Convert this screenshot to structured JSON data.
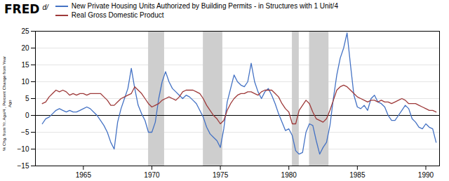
{
  "chart_data": {
    "type": "line",
    "title": "FRED",
    "annotations": [
      "d/"
    ],
    "ylabel": "% Chg. from Yr. Ago/4 , Percent Change from Year\nAgo",
    "xlim": [
      1961.5,
      1991.0
    ],
    "xticks": [
      1965,
      1970,
      1975,
      1980,
      1985,
      1990
    ],
    "ylim": [
      -15,
      25
    ],
    "yticks": [
      -15,
      -10,
      -5,
      0,
      5,
      10,
      15,
      20,
      25
    ],
    "grid": true,
    "recession_bands": {
      "color": "#cecece",
      "ranges": [
        [
          1969.75,
          1970.92
        ],
        [
          1973.75,
          1975.17
        ],
        [
          1980.25,
          1980.75
        ],
        [
          1981.5,
          1982.92
        ]
      ]
    },
    "x": [
      1962.0,
      1962.25,
      1962.5,
      1962.75,
      1963.0,
      1963.25,
      1963.5,
      1963.75,
      1964.0,
      1964.25,
      1964.5,
      1964.75,
      1965.0,
      1965.25,
      1965.5,
      1965.75,
      1966.0,
      1966.25,
      1966.5,
      1966.75,
      1967.0,
      1967.25,
      1967.5,
      1967.75,
      1968.0,
      1968.25,
      1968.5,
      1968.75,
      1969.0,
      1969.25,
      1969.5,
      1969.75,
      1970.0,
      1970.25,
      1970.5,
      1970.75,
      1971.0,
      1971.25,
      1971.5,
      1971.75,
      1972.0,
      1972.25,
      1972.5,
      1972.75,
      1973.0,
      1973.25,
      1973.5,
      1973.75,
      1974.0,
      1974.25,
      1974.5,
      1974.75,
      1975.0,
      1975.25,
      1975.5,
      1975.75,
      1976.0,
      1976.25,
      1976.5,
      1976.75,
      1977.0,
      1977.25,
      1977.5,
      1977.75,
      1978.0,
      1978.25,
      1978.5,
      1978.75,
      1979.0,
      1979.25,
      1979.5,
      1979.75,
      1980.0,
      1980.25,
      1980.5,
      1980.75,
      1981.0,
      1981.25,
      1981.5,
      1981.75,
      1982.0,
      1982.25,
      1982.5,
      1982.75,
      1983.0,
      1983.25,
      1983.5,
      1983.75,
      1984.0,
      1984.25,
      1984.5,
      1984.75,
      1985.0,
      1985.25,
      1985.5,
      1985.75,
      1986.0,
      1986.25,
      1986.5,
      1986.75,
      1987.0,
      1987.25,
      1987.5,
      1987.75,
      1988.0,
      1988.25,
      1988.5,
      1988.75,
      1989.0,
      1989.25,
      1989.5,
      1989.75,
      1990.0,
      1990.25,
      1990.5,
      1990.75
    ],
    "series": [
      {
        "name": "New Private Housing Units Authorized by Building Permits - in Structures with 1 Unit/4",
        "color": "#4472c4",
        "values": [
          -2.5,
          -1.0,
          -0.5,
          0.5,
          1.5,
          2.0,
          1.5,
          1.0,
          1.5,
          1.0,
          1.0,
          1.5,
          2.0,
          2.5,
          2.0,
          1.0,
          0.0,
          -1.5,
          -3.0,
          -5.0,
          -8.0,
          -10.0,
          -2.0,
          2.0,
          5.0,
          8.0,
          14.0,
          8.0,
          3.0,
          0.5,
          -1.5,
          -5.0,
          -5.0,
          -2.0,
          5.0,
          10.0,
          13.0,
          10.0,
          8.0,
          7.0,
          6.0,
          5.0,
          6.0,
          5.5,
          4.5,
          3.5,
          1.5,
          -0.5,
          -3.5,
          -5.5,
          -6.5,
          -7.5,
          -9.5,
          -4.0,
          4.0,
          8.0,
          12.0,
          10.0,
          9.0,
          8.5,
          10.0,
          15.5,
          10.0,
          7.0,
          5.0,
          7.0,
          8.0,
          6.0,
          3.5,
          0.5,
          -2.0,
          -4.5,
          -4.0,
          -6.0,
          -10.5,
          -11.5,
          -11.0,
          -5.0,
          -2.5,
          -3.0,
          -7.5,
          -11.5,
          -9.5,
          -8.0,
          -3.0,
          5.0,
          12.0,
          17.0,
          20.0,
          24.5,
          15.0,
          6.0,
          2.5,
          2.0,
          3.0,
          1.5,
          5.0,
          6.0,
          4.0,
          3.5,
          2.5,
          0.0,
          -1.5,
          -1.5,
          0.0,
          1.5,
          3.0,
          2.0,
          -1.0,
          -2.0,
          -3.5,
          -4.0,
          -2.5,
          -3.5,
          -4.0,
          -8.0
        ]
      },
      {
        "name": "Real Gross Domestic Product",
        "color": "#9e3a3a",
        "values": [
          3.5,
          4.0,
          5.5,
          6.5,
          7.5,
          7.0,
          7.5,
          7.0,
          6.0,
          6.5,
          6.0,
          6.5,
          6.5,
          6.0,
          6.5,
          6.5,
          6.5,
          6.5,
          5.5,
          4.5,
          3.0,
          3.0,
          4.0,
          5.0,
          5.5,
          6.0,
          6.5,
          8.5,
          7.5,
          6.5,
          5.0,
          3.5,
          2.5,
          3.0,
          3.5,
          4.5,
          5.0,
          5.5,
          5.0,
          4.5,
          5.5,
          7.0,
          7.5,
          7.5,
          7.5,
          7.0,
          6.5,
          5.0,
          3.0,
          1.5,
          0.0,
          -1.0,
          -2.5,
          -1.5,
          1.5,
          3.5,
          5.0,
          6.0,
          6.5,
          6.5,
          7.0,
          7.0,
          6.5,
          6.0,
          7.0,
          7.5,
          7.5,
          7.5,
          6.5,
          5.5,
          3.5,
          2.0,
          1.0,
          -2.5,
          -2.5,
          1.5,
          3.0,
          4.5,
          3.5,
          1.0,
          -1.0,
          -1.5,
          -2.0,
          -1.0,
          1.5,
          4.5,
          7.5,
          8.5,
          9.0,
          8.5,
          7.5,
          6.5,
          5.5,
          5.0,
          4.5,
          4.0,
          4.5,
          4.5,
          4.0,
          4.5,
          4.0,
          4.0,
          3.5,
          4.0,
          4.5,
          5.0,
          4.5,
          3.5,
          3.5,
          3.5,
          3.0,
          2.5,
          2.0,
          1.5,
          1.5,
          1.0
        ]
      }
    ]
  }
}
